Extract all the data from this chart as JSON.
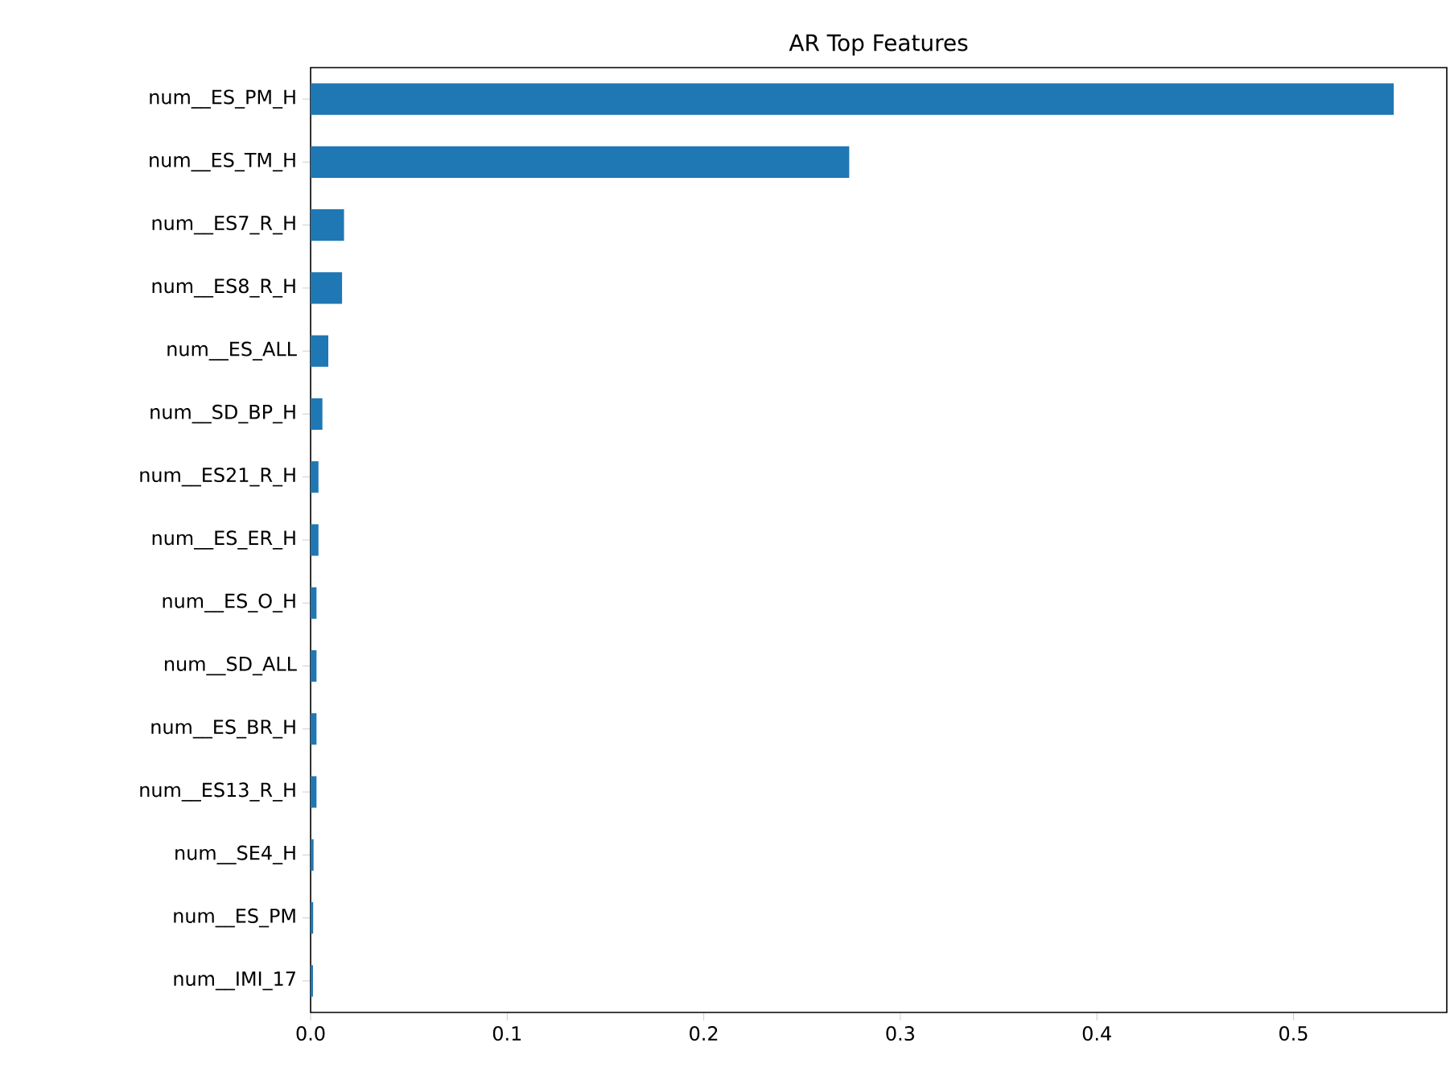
{
  "chart_data": {
    "type": "bar",
    "orientation": "horizontal",
    "title": "AR Top Features",
    "categories": [
      "num__ES_PM_H",
      "num__ES_TM_H",
      "num__ES7_R_H",
      "num__ES8_R_H",
      "num__ES_ALL",
      "num__SD_BP_H",
      "num__ES21_R_H",
      "num__ES_ER_H",
      "num__ES_O_H",
      "num__SD_ALL",
      "num__ES_BR_H",
      "num__ES13_R_H",
      "num__SE4_H",
      "num__ES_PM",
      "num__IMI_17"
    ],
    "values": [
      0.551,
      0.274,
      0.017,
      0.016,
      0.009,
      0.006,
      0.004,
      0.004,
      0.003,
      0.003,
      0.003,
      0.003,
      0.0015,
      0.0013,
      0.0012
    ],
    "color": "#1f77b4",
    "xlim": [
      0,
      0.578
    ],
    "xticks": [
      {
        "value": 0,
        "label": "0.0"
      },
      0.1,
      0.2,
      0.3,
      0.4,
      0.5
    ],
    "grid": false
  }
}
